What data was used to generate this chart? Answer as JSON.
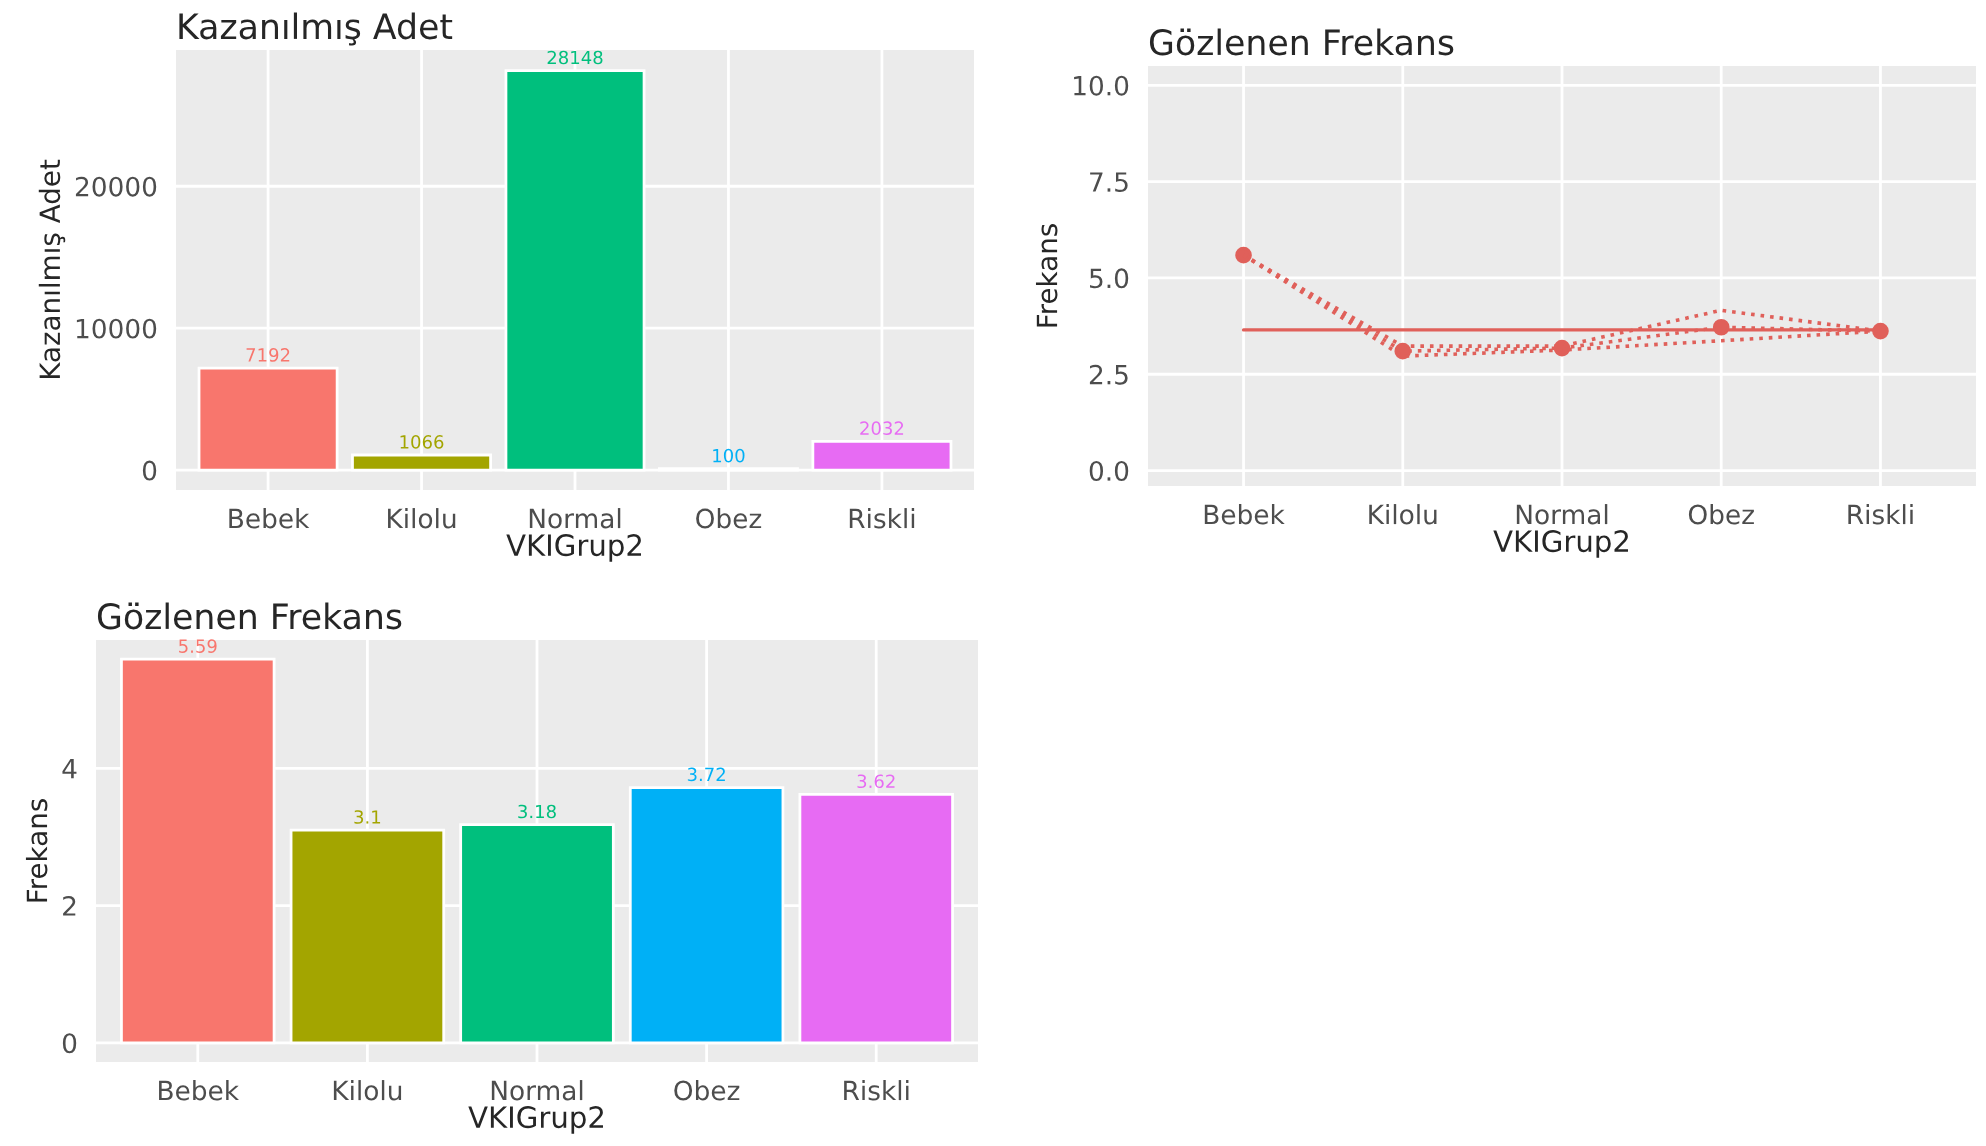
{
  "chart_data": [
    {
      "type": "bar",
      "title": "Kazanılmış Adet",
      "xlabel": "VKIGrup2",
      "ylabel": "Kazanılmış Adet",
      "categories": [
        "Bebek",
        "Kilolu",
        "Normal",
        "Obez",
        "Riskli"
      ],
      "values": [
        7192,
        1066,
        28148,
        100,
        2032
      ],
      "colors": [
        "#f8766d",
        "#a3a500",
        "#00bf7d",
        "#00b0f6",
        "#e76bf3"
      ],
      "ylim": [
        -1400,
        29600
      ],
      "yticks": [
        0,
        10000,
        20000
      ],
      "grid": true,
      "data_labels": true
    },
    {
      "type": "line",
      "title": "Gözlenen Frekans",
      "xlabel": "VKIGrup2",
      "ylabel": "Frekans",
      "categories": [
        "Bebek",
        "Kilolu",
        "Normal",
        "Obez",
        "Riskli"
      ],
      "series": [
        {
          "color": "#e0605a",
          "values": [
            5.59,
            3.1,
            3.18,
            3.72,
            3.62
          ],
          "marker": "circle"
        },
        {
          "color": "#e0605a",
          "values": [
            5.59,
            2.97,
            3.13,
            3.37,
            3.62
          ],
          "marker": "none"
        },
        {
          "color": "#e0605a",
          "values": [
            5.59,
            3.23,
            3.23,
            4.16,
            3.62
          ],
          "marker": "none"
        }
      ],
      "line_style": "dotted",
      "ref_lines": [
        {
          "axis": "y",
          "value": 3.65,
          "color": "#e0605a",
          "line_style": "solid"
        }
      ],
      "ylim": [
        -0.4,
        10.5
      ],
      "yticks": [
        {
          "value": 0,
          "label": "0.0"
        },
        {
          "value": 2.5,
          "label": "2.5"
        },
        {
          "value": 5,
          "label": "5.0"
        },
        {
          "value": 7.5,
          "label": "7.5"
        },
        {
          "value": 10,
          "label": "10.0"
        }
      ],
      "grid": true
    },
    {
      "type": "bar",
      "title": "Gözlenen Frekans",
      "xlabel": "VKIGrup2",
      "ylabel": "Frekans",
      "categories": [
        "Bebek",
        "Kilolu",
        "Normal",
        "Obez",
        "Riskli"
      ],
      "values": [
        5.59,
        3.1,
        3.18,
        3.72,
        3.62
      ],
      "colors": [
        "#f8766d",
        "#a3a500",
        "#00bf7d",
        "#00b0f6",
        "#e76bf3"
      ],
      "ylim": [
        -0.28,
        5.87
      ],
      "yticks": [
        0,
        2,
        4
      ],
      "grid": true,
      "data_labels": true
    }
  ]
}
